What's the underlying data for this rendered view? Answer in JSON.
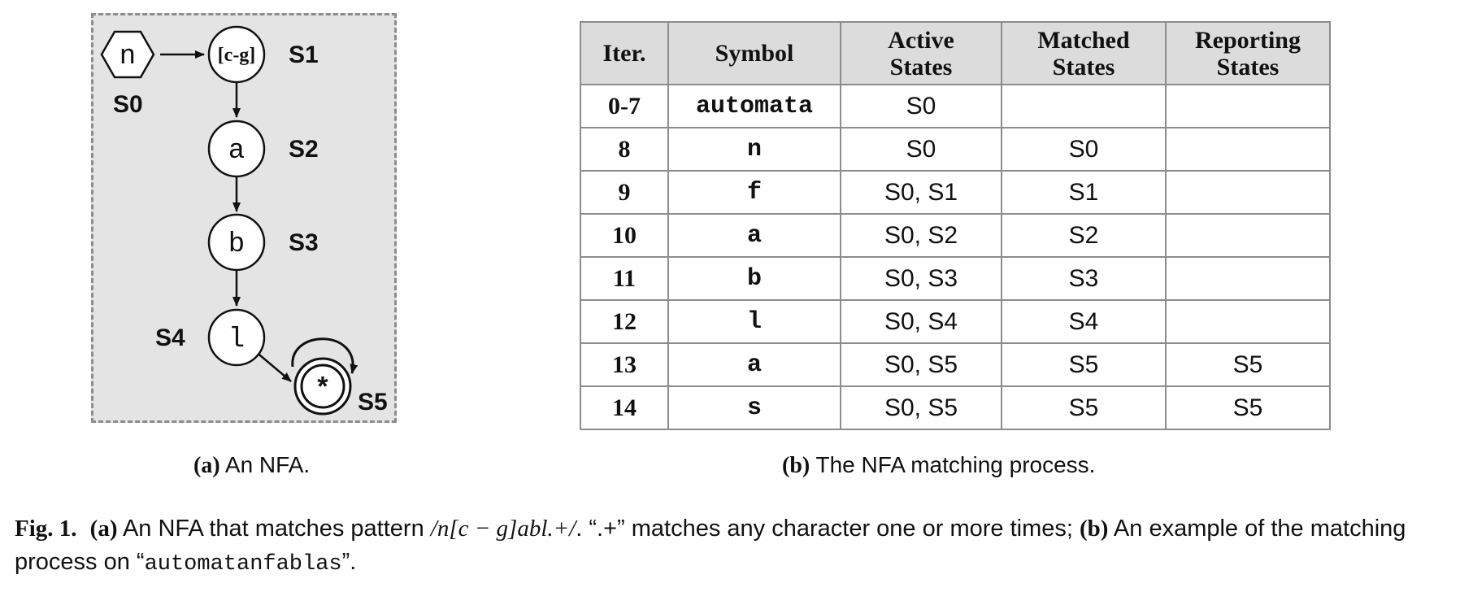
{
  "nfa": {
    "states": [
      {
        "id": "S0",
        "symbol": "n",
        "label": "S0",
        "shape": "hexagon",
        "start": true
      },
      {
        "id": "S1",
        "symbol": "[c-g]",
        "label": "S1",
        "shape": "circle"
      },
      {
        "id": "S2",
        "symbol": "a",
        "label": "S2",
        "shape": "circle"
      },
      {
        "id": "S3",
        "symbol": "b",
        "label": "S3",
        "shape": "circle"
      },
      {
        "id": "S4",
        "symbol": "l",
        "label": "S4",
        "shape": "circle"
      },
      {
        "id": "S5",
        "symbol": "*",
        "label": "S5",
        "shape": "double-circle",
        "reporting": true
      }
    ],
    "edges": [
      {
        "from": "S0",
        "to": "S1"
      },
      {
        "from": "S1",
        "to": "S2"
      },
      {
        "from": "S2",
        "to": "S3"
      },
      {
        "from": "S3",
        "to": "S4"
      },
      {
        "from": "S4",
        "to": "S5"
      },
      {
        "from": "S5",
        "to": "S5",
        "self_loop": true
      }
    ]
  },
  "table": {
    "headers": [
      "Iter.",
      "Symbol",
      "Active States",
      "Matched States",
      "Reporting States"
    ],
    "rows": [
      [
        "0-7",
        "automata",
        "S0",
        "",
        ""
      ],
      [
        "8",
        "n",
        "S0",
        "S0",
        ""
      ],
      [
        "9",
        "f",
        "S0, S1",
        "S1",
        ""
      ],
      [
        "10",
        "a",
        "S0, S2",
        "S2",
        ""
      ],
      [
        "11",
        "b",
        "S0, S3",
        "S3",
        ""
      ],
      [
        "12",
        "l",
        "S0, S4",
        "S4",
        ""
      ],
      [
        "13",
        "a",
        "S0, S5",
        "S5",
        "S5"
      ],
      [
        "14",
        "s",
        "S0, S5",
        "S5",
        "S5"
      ]
    ]
  },
  "captions": {
    "a": {
      "label": "(a)",
      "text": " An NFA."
    },
    "b": {
      "label": "(b)",
      "text": " The NFA matching process."
    }
  },
  "figure_caption": {
    "fig_label": "Fig. 1.",
    "part_a_label": "(a)",
    "part_a_text": " An NFA that matches pattern ",
    "pattern": "/n[c − g]abl.+/",
    "middle_text": ". “.+” matches any character one or more times; ",
    "part_b_label": "(b)",
    "part_b_text": " An example of the matching process on “",
    "input_string": "automatanfablas",
    "end_text": "”."
  },
  "colors": {
    "panel_background": "#e4e4e4",
    "panel_border": "#8c8c8c",
    "table_header_background": "#dcdcdc",
    "table_border": "#8c8c8c"
  }
}
